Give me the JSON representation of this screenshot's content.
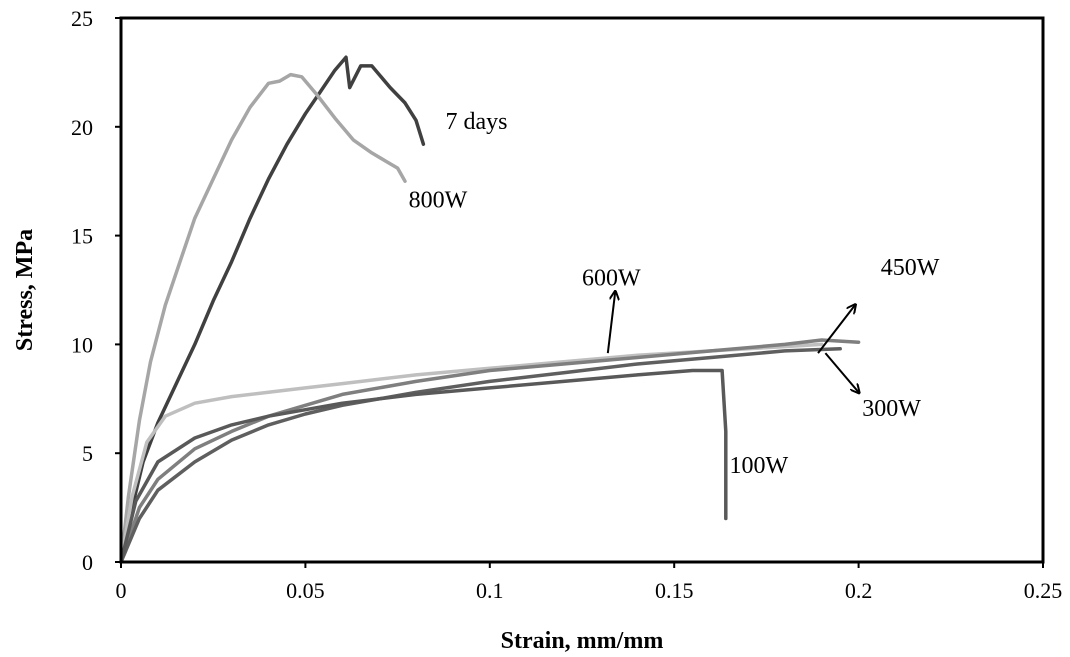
{
  "chart_data": {
    "type": "line",
    "title": "",
    "xlabel": "Strain, mm/mm",
    "ylabel": "Stress, MPa",
    "xlim": [
      0,
      0.25
    ],
    "ylim": [
      0,
      25
    ],
    "xticks": [
      "0",
      "0.05",
      "0.1",
      "0.15",
      "0.2",
      "0.25"
    ],
    "yticks": [
      "0",
      "5",
      "10",
      "15",
      "20",
      "25"
    ],
    "grid": false,
    "legend": "none",
    "series": [
      {
        "name": "7 days",
        "color": "#404040",
        "points": [
          [
            0,
            0
          ],
          [
            0.003,
            2.5
          ],
          [
            0.006,
            4.6
          ],
          [
            0.01,
            6.4
          ],
          [
            0.015,
            8.2
          ],
          [
            0.02,
            10
          ],
          [
            0.025,
            12
          ],
          [
            0.03,
            13.8
          ],
          [
            0.035,
            15.8
          ],
          [
            0.04,
            17.6
          ],
          [
            0.045,
            19.2
          ],
          [
            0.05,
            20.6
          ],
          [
            0.054,
            21.6
          ],
          [
            0.058,
            22.6
          ],
          [
            0.061,
            23.2
          ],
          [
            0.062,
            21.8
          ],
          [
            0.065,
            22.8
          ],
          [
            0.068,
            22.8
          ],
          [
            0.073,
            21.8
          ],
          [
            0.077,
            21.1
          ],
          [
            0.08,
            20.3
          ],
          [
            0.082,
            19.2
          ]
        ]
      },
      {
        "name": "800W",
        "color": "#a6a6a6",
        "points": [
          [
            0,
            0
          ],
          [
            0.002,
            3
          ],
          [
            0.005,
            6.5
          ],
          [
            0.008,
            9.2
          ],
          [
            0.012,
            11.8
          ],
          [
            0.016,
            13.8
          ],
          [
            0.02,
            15.8
          ],
          [
            0.025,
            17.6
          ],
          [
            0.03,
            19.4
          ],
          [
            0.035,
            20.9
          ],
          [
            0.04,
            22
          ],
          [
            0.043,
            22.1
          ],
          [
            0.046,
            22.4
          ],
          [
            0.049,
            22.3
          ],
          [
            0.053,
            21.5
          ],
          [
            0.058,
            20.4
          ],
          [
            0.063,
            19.4
          ],
          [
            0.068,
            18.8
          ],
          [
            0.072,
            18.4
          ],
          [
            0.075,
            18.1
          ],
          [
            0.077,
            17.5
          ]
        ]
      },
      {
        "name": "600W",
        "color": "#bfbfbf",
        "points": [
          [
            0,
            0
          ],
          [
            0.003,
            3
          ],
          [
            0.007,
            5.5
          ],
          [
            0.012,
            6.7
          ],
          [
            0.02,
            7.3
          ],
          [
            0.03,
            7.6
          ],
          [
            0.04,
            7.8
          ],
          [
            0.05,
            8
          ],
          [
            0.06,
            8.2
          ],
          [
            0.08,
            8.6
          ],
          [
            0.1,
            8.9
          ],
          [
            0.12,
            9.2
          ],
          [
            0.14,
            9.5
          ],
          [
            0.16,
            9.7
          ],
          [
            0.18,
            9.9
          ],
          [
            0.19,
            10
          ]
        ]
      },
      {
        "name": "450W",
        "color": "#7f7f7f",
        "points": [
          [
            0,
            0
          ],
          [
            0.005,
            2.5
          ],
          [
            0.01,
            3.8
          ],
          [
            0.02,
            5.2
          ],
          [
            0.03,
            6
          ],
          [
            0.04,
            6.7
          ],
          [
            0.05,
            7.2
          ],
          [
            0.06,
            7.7
          ],
          [
            0.08,
            8.3
          ],
          [
            0.1,
            8.8
          ],
          [
            0.12,
            9.1
          ],
          [
            0.14,
            9.4
          ],
          [
            0.16,
            9.7
          ],
          [
            0.18,
            10
          ],
          [
            0.19,
            10.2
          ],
          [
            0.2,
            10.1
          ]
        ]
      },
      {
        "name": "300W",
        "color": "#5f5f5f",
        "points": [
          [
            0,
            0
          ],
          [
            0.005,
            2
          ],
          [
            0.01,
            3.3
          ],
          [
            0.02,
            4.6
          ],
          [
            0.03,
            5.6
          ],
          [
            0.04,
            6.3
          ],
          [
            0.05,
            6.8
          ],
          [
            0.06,
            7.2
          ],
          [
            0.08,
            7.8
          ],
          [
            0.1,
            8.3
          ],
          [
            0.12,
            8.7
          ],
          [
            0.14,
            9.1
          ],
          [
            0.16,
            9.4
          ],
          [
            0.18,
            9.7
          ],
          [
            0.195,
            9.8
          ]
        ]
      },
      {
        "name": "100W",
        "color": "#595959",
        "points": [
          [
            0,
            0
          ],
          [
            0.004,
            2.8
          ],
          [
            0.01,
            4.6
          ],
          [
            0.02,
            5.7
          ],
          [
            0.03,
            6.3
          ],
          [
            0.04,
            6.7
          ],
          [
            0.05,
            7
          ],
          [
            0.06,
            7.3
          ],
          [
            0.08,
            7.7
          ],
          [
            0.1,
            8
          ],
          [
            0.12,
            8.3
          ],
          [
            0.14,
            8.6
          ],
          [
            0.155,
            8.8
          ],
          [
            0.163,
            8.8
          ],
          [
            0.164,
            6
          ],
          [
            0.164,
            2
          ]
        ]
      }
    ],
    "annotations": [
      {
        "text": "7 days",
        "x": 0.088,
        "y": 19.9
      },
      {
        "text": "800W",
        "x": 0.078,
        "y": 16.3
      },
      {
        "text": "600W",
        "x": 0.125,
        "y": 12.7
      },
      {
        "text": "450W",
        "x": 0.206,
        "y": 13.2
      },
      {
        "text": "300W",
        "x": 0.201,
        "y": 6.7
      },
      {
        "text": "100W",
        "x": 0.165,
        "y": 4.1
      }
    ],
    "arrows": [
      {
        "label": "600W",
        "from": [
          0.132,
          9.6
        ],
        "to": [
          0.134,
          12.4
        ]
      },
      {
        "label": "450W",
        "from": [
          0.189,
          9.6
        ],
        "to": [
          0.199,
          11.8
        ]
      },
      {
        "label": "300W",
        "from": [
          0.191,
          9.6
        ],
        "to": [
          0.2,
          7.8
        ]
      }
    ]
  }
}
